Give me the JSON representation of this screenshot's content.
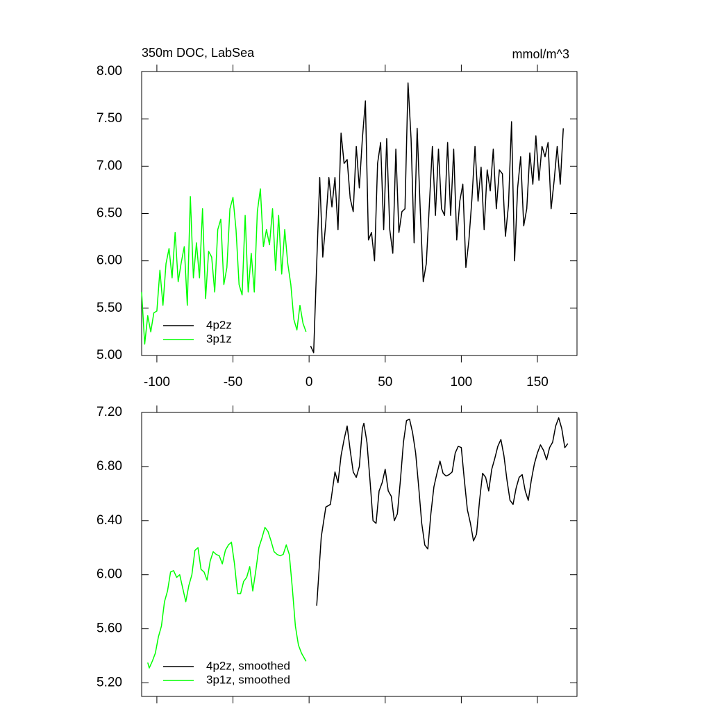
{
  "chart_data": [
    {
      "type": "line",
      "title": "350m DOC, LabSea",
      "subtitle": "mmol/m^3",
      "xlim": [
        -110,
        176
      ],
      "xticks": [
        -100,
        -50,
        0,
        50,
        100,
        150
      ],
      "ylim": [
        5,
        8
      ],
      "yticks": [
        {
          "value": 5,
          "label": "5.00"
        },
        {
          "value": 5.5,
          "label": "5.50"
        },
        {
          "value": 6,
          "label": "6.00"
        },
        {
          "value": 6.5,
          "label": "6.50"
        },
        {
          "value": 7,
          "label": "7.00"
        },
        {
          "value": 7.5,
          "label": "7.50"
        },
        {
          "value": 8,
          "label": "8.00"
        }
      ],
      "legend": "lower left",
      "series": [
        {
          "name": "4p2z",
          "color": "#000000",
          "x": [
            1,
            3,
            5,
            7,
            9,
            11,
            13,
            15,
            17,
            19,
            21,
            23,
            25,
            27,
            29,
            31,
            33,
            35,
            37,
            39,
            41,
            43,
            45,
            47,
            49,
            51,
            53,
            55,
            57,
            59,
            61,
            63,
            65,
            67,
            69,
            71,
            73,
            75,
            77,
            79,
            81,
            83,
            85,
            87,
            89,
            91,
            93,
            95,
            97,
            99,
            101,
            103,
            105,
            107,
            109,
            111,
            113,
            115,
            117,
            119,
            121,
            123,
            125,
            127,
            129,
            131,
            133,
            135,
            137,
            139,
            141,
            143,
            145,
            147,
            149,
            151,
            153,
            155,
            157,
            159,
            161,
            163,
            165,
            167
          ],
          "values": [
            5.1,
            5.03,
            5.97,
            6.88,
            6.04,
            6.41,
            6.88,
            6.57,
            6.88,
            6.33,
            7.35,
            7.03,
            7.07,
            6.66,
            6.52,
            7.21,
            6.77,
            7.29,
            7.69,
            6.22,
            6.3,
            6.0,
            7.03,
            7.25,
            6.33,
            7.29,
            6.33,
            6.08,
            7.18,
            6.3,
            6.52,
            6.55,
            7.88,
            7.29,
            6.19,
            7.4,
            6.55,
            5.78,
            5.97,
            6.59,
            7.21,
            6.48,
            7.18,
            6.55,
            6.48,
            7.25,
            6.48,
            7.18,
            6.22,
            6.63,
            6.81,
            5.93,
            6.22,
            6.66,
            7.21,
            6.63,
            6.99,
            6.33,
            6.96,
            6.74,
            7.18,
            6.55,
            6.96,
            6.92,
            6.26,
            6.59,
            7.47,
            6.0,
            6.77,
            7.1,
            6.37,
            6.55,
            7.14,
            6.81,
            7.32,
            6.85,
            7.21,
            7.1,
            7.25,
            6.55,
            6.85,
            7.21,
            6.81,
            7.4
          ]
        },
        {
          "name": "3p1z",
          "color": "#00ff00",
          "x": [
            -110,
            -108,
            -106,
            -104,
            -102,
            -100,
            -98,
            -96,
            -94,
            -92,
            -90,
            -88,
            -86,
            -84,
            -82,
            -80,
            -78,
            -76,
            -74,
            -72,
            -70,
            -68,
            -66,
            -64,
            -62,
            -60,
            -58,
            -56,
            -54,
            -52,
            -50,
            -48,
            -46,
            -44,
            -42,
            -40,
            -38,
            -36,
            -34,
            -32,
            -30,
            -28,
            -26,
            -24,
            -22,
            -20,
            -18,
            -16,
            -14,
            -12,
            -10,
            -8,
            -6,
            -4,
            -2
          ],
          "values": [
            5.67,
            5.12,
            5.42,
            5.25,
            5.45,
            5.47,
            5.9,
            5.53,
            5.97,
            6.13,
            5.82,
            6.3,
            5.78,
            5.98,
            6.15,
            5.53,
            6.68,
            5.82,
            6.19,
            5.82,
            6.55,
            5.6,
            6.1,
            6.04,
            5.67,
            6.33,
            6.44,
            5.75,
            5.93,
            6.55,
            6.67,
            6.33,
            5.75,
            5.64,
            6.48,
            5.67,
            6.08,
            5.67,
            6.52,
            6.76,
            6.15,
            6.33,
            6.17,
            6.55,
            5.9,
            6.48,
            5.86,
            6.33,
            5.97,
            5.75,
            5.38,
            5.27,
            5.53,
            5.34,
            5.25
          ]
        }
      ]
    },
    {
      "type": "line",
      "xlim": [
        -110,
        176
      ],
      "xticks": [
        -100,
        -50,
        0,
        50,
        100,
        150
      ],
      "ylim": [
        5.1,
        7.2
      ],
      "yticks": [
        {
          "value": 5.2,
          "label": "5.20"
        },
        {
          "value": 5.6,
          "label": "5.60"
        },
        {
          "value": 6,
          "label": "6.00"
        },
        {
          "value": 6.4,
          "label": "6.40"
        },
        {
          "value": 6.8,
          "label": "6.80"
        },
        {
          "value": 7.2,
          "label": "7.20"
        }
      ],
      "legend": "lower left",
      "series": [
        {
          "name": "4p2z, smoothed",
          "color": "#000000",
          "x": [
            5,
            8,
            11,
            14,
            17,
            19,
            21,
            23,
            25,
            27,
            29,
            31,
            33,
            35,
            36,
            38,
            40,
            42,
            44,
            46,
            48,
            50,
            52,
            54,
            56,
            58,
            60,
            62,
            64,
            66,
            68,
            70,
            72,
            74,
            76,
            78,
            80,
            82,
            84,
            86,
            88,
            90,
            92,
            94,
            96,
            98,
            100,
            102,
            104,
            106,
            108,
            110,
            112,
            114,
            116,
            118,
            120,
            122,
            124,
            126,
            128,
            130,
            132,
            134,
            136,
            138,
            140,
            142,
            144,
            146,
            148,
            150,
            152,
            154,
            156,
            158,
            160,
            162,
            164,
            166,
            168,
            170
          ],
          "values": [
            5.77,
            6.28,
            6.5,
            6.52,
            6.76,
            6.68,
            6.88,
            7.0,
            7.1,
            6.92,
            6.76,
            6.72,
            6.8,
            7.08,
            7.12,
            6.98,
            6.7,
            6.4,
            6.38,
            6.62,
            6.68,
            6.78,
            6.62,
            6.58,
            6.4,
            6.45,
            6.7,
            6.98,
            7.14,
            7.15,
            7.05,
            6.9,
            6.65,
            6.38,
            6.22,
            6.19,
            6.45,
            6.65,
            6.75,
            6.84,
            6.75,
            6.73,
            6.74,
            6.76,
            6.9,
            6.95,
            6.94,
            6.7,
            6.48,
            6.38,
            6.25,
            6.3,
            6.55,
            6.75,
            6.72,
            6.62,
            6.78,
            6.86,
            6.95,
            7.0,
            6.88,
            6.7,
            6.55,
            6.52,
            6.64,
            6.72,
            6.74,
            6.62,
            6.55,
            6.7,
            6.82,
            6.9,
            6.96,
            6.92,
            6.85,
            6.94,
            6.98,
            7.1,
            7.16,
            7.08,
            6.94,
            6.97
          ]
        },
        {
          "name": "3p1z, smoothed",
          "color": "#00ff00",
          "x": [
            -106,
            -105,
            -103,
            -101,
            -99,
            -97,
            -95,
            -93,
            -91,
            -89,
            -87,
            -85,
            -83,
            -81,
            -79,
            -77,
            -75,
            -73,
            -71,
            -69,
            -67,
            -65,
            -63,
            -61,
            -59,
            -57,
            -55,
            -53,
            -51,
            -49,
            -47,
            -45,
            -43,
            -41,
            -39,
            -37,
            -35,
            -33,
            -31,
            -29,
            -27,
            -25,
            -23,
            -21,
            -19,
            -17,
            -15,
            -13,
            -11,
            -9,
            -7,
            -5,
            -3,
            -2
          ],
          "values": [
            5.35,
            5.31,
            5.36,
            5.42,
            5.54,
            5.62,
            5.8,
            5.88,
            6.02,
            6.03,
            5.98,
            6.0,
            5.9,
            5.8,
            5.92,
            6.0,
            6.18,
            6.2,
            6.04,
            6.02,
            5.96,
            6.1,
            6.17,
            6.15,
            6.14,
            6.08,
            6.18,
            6.22,
            6.24,
            6.08,
            5.86,
            5.86,
            5.95,
            5.98,
            6.06,
            5.88,
            6.03,
            6.2,
            6.27,
            6.35,
            6.32,
            6.25,
            6.17,
            6.15,
            6.14,
            6.15,
            6.22,
            6.15,
            5.9,
            5.62,
            5.48,
            5.42,
            5.38,
            5.36
          ]
        }
      ]
    }
  ]
}
